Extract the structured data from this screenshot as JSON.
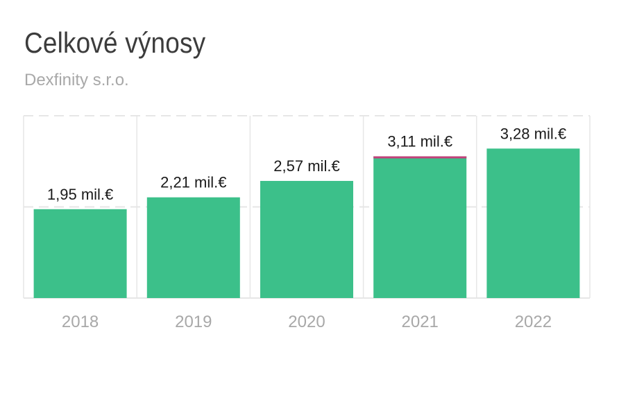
{
  "header": {
    "title": "Celkové výnosy",
    "subtitle": "Dexfinity s.r.o."
  },
  "chart_data": {
    "type": "bar",
    "title": "Celkové výnosy",
    "subtitle": "Dexfinity s.r.o.",
    "xlabel": "",
    "ylabel": "",
    "categories": [
      "2018",
      "2019",
      "2020",
      "2021",
      "2022"
    ],
    "values": [
      1.95,
      2.21,
      2.57,
      3.11,
      3.28
    ],
    "labels": [
      "1,95 mil.€",
      "2,21 mil.€",
      "2,57 mil.€",
      "3,11 mil.€",
      "3,28 mil.€"
    ],
    "ylim": [
      0,
      4
    ],
    "grid": true,
    "bar_color": "#3cc08a",
    "highlight_color": "#c2407a",
    "highlight_index": 3,
    "grid_color": "#e6e6e6",
    "axis_label_color": "#a8a8a8",
    "value_label_color": "#1a1a1a"
  }
}
